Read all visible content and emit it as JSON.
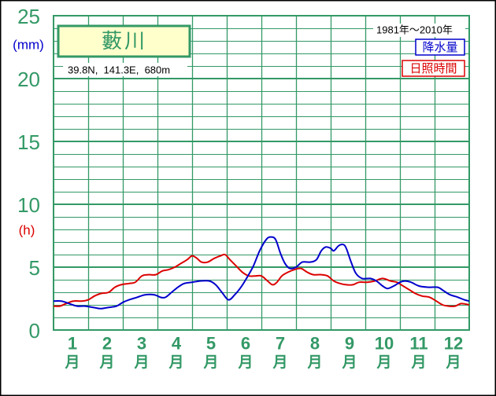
{
  "chart_data": {
    "type": "line",
    "title": "藪川",
    "subtitle": "39.8N,  141.3E,  680m",
    "period": "1981年～2010年",
    "ylabel_precipitation": "(mm)",
    "ylabel_sunshine": "(h)",
    "ylim": [
      0,
      25
    ],
    "yticks": [
      25,
      20,
      15,
      10,
      5,
      0
    ],
    "xlim": [
      0.5,
      12.5
    ],
    "xticks": [
      1,
      2,
      3,
      4,
      5,
      6,
      7,
      8,
      9,
      10,
      11,
      12
    ],
    "xtick_unit": "月",
    "grid": true,
    "legend": "top-right",
    "series": [
      {
        "name": "降水量",
        "color": "#0000cc",
        "x": [
          0.5,
          0.73,
          0.95,
          1.18,
          1.41,
          1.64,
          1.86,
          2.09,
          2.32,
          2.5,
          2.68,
          2.91,
          3.14,
          3.41,
          3.59,
          3.73,
          3.91,
          4.09,
          4.27,
          4.5,
          4.73,
          5.0,
          5.18,
          5.36,
          5.55,
          5.73,
          5.91,
          6.09,
          6.27,
          6.45,
          6.64,
          6.77,
          6.91,
          7.05,
          7.18,
          7.32,
          7.5,
          7.68,
          7.91,
          8.09,
          8.23,
          8.36,
          8.5,
          8.59,
          8.73,
          8.86,
          8.95,
          9.09,
          9.23,
          9.41,
          9.64,
          9.82,
          10.0,
          10.14,
          10.32,
          10.5,
          10.64,
          10.82,
          11.05,
          11.32,
          11.59,
          11.77,
          11.95,
          12.18,
          12.36,
          12.5
        ],
        "values": [
          2.3,
          2.3,
          2.1,
          1.9,
          1.9,
          1.8,
          1.7,
          1.8,
          1.9,
          2.2,
          2.4,
          2.6,
          2.8,
          2.8,
          2.6,
          2.6,
          3.0,
          3.4,
          3.7,
          3.8,
          3.9,
          3.9,
          3.6,
          3.0,
          2.4,
          2.8,
          3.4,
          4.2,
          5.1,
          6.3,
          7.2,
          7.4,
          7.2,
          6.1,
          5.3,
          4.9,
          5.0,
          5.4,
          5.4,
          5.6,
          6.3,
          6.6,
          6.5,
          6.3,
          6.7,
          6.8,
          6.5,
          5.4,
          4.5,
          4.1,
          4.1,
          3.9,
          3.5,
          3.3,
          3.5,
          3.8,
          3.9,
          3.8,
          3.5,
          3.4,
          3.4,
          3.1,
          2.8,
          2.6,
          2.4,
          2.3
        ]
      },
      {
        "name": "日照時間",
        "color": "#dc0000",
        "x": [
          0.5,
          0.68,
          0.86,
          1.07,
          1.32,
          1.5,
          1.68,
          1.86,
          2.09,
          2.27,
          2.45,
          2.68,
          2.86,
          3.05,
          3.23,
          3.45,
          3.64,
          3.82,
          4.0,
          4.18,
          4.36,
          4.5,
          4.64,
          4.77,
          4.95,
          5.14,
          5.32,
          5.45,
          5.59,
          5.77,
          5.95,
          6.14,
          6.32,
          6.5,
          6.68,
          6.82,
          6.95,
          7.09,
          7.27,
          7.45,
          7.64,
          7.82,
          8.0,
          8.23,
          8.41,
          8.59,
          8.77,
          8.95,
          9.14,
          9.32,
          9.55,
          9.77,
          10.0,
          10.23,
          10.41,
          10.59,
          10.77,
          10.95,
          11.14,
          11.36,
          11.55,
          11.73,
          11.91,
          12.09,
          12.27,
          12.5
        ],
        "values": [
          1.9,
          1.9,
          2.1,
          2.3,
          2.3,
          2.4,
          2.7,
          2.9,
          3.0,
          3.4,
          3.6,
          3.7,
          3.8,
          4.3,
          4.4,
          4.4,
          4.7,
          4.8,
          5.0,
          5.3,
          5.6,
          5.9,
          5.7,
          5.4,
          5.4,
          5.7,
          5.9,
          6.0,
          5.6,
          5.1,
          4.6,
          4.3,
          4.3,
          4.3,
          3.9,
          3.6,
          3.8,
          4.3,
          4.6,
          4.8,
          4.9,
          4.6,
          4.4,
          4.4,
          4.3,
          3.9,
          3.7,
          3.6,
          3.6,
          3.8,
          3.8,
          3.9,
          4.1,
          3.9,
          3.8,
          3.5,
          3.2,
          2.9,
          2.7,
          2.6,
          2.3,
          2.0,
          1.9,
          1.9,
          2.1,
          2.0
        ]
      }
    ]
  },
  "colors": {
    "grid_green": "#339966",
    "title_fill": "#ffffcc"
  }
}
